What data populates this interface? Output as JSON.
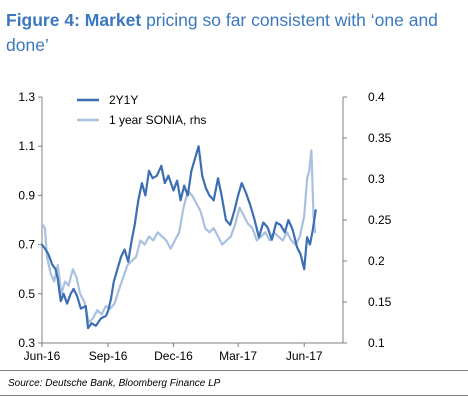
{
  "title": {
    "figure_label": "Figure 4:",
    "strong": "Market",
    "rest": "pricing so far consistent with ‘one and done’"
  },
  "source": "Source: Deutsche Bank, Bloomberg Finance LP",
  "colors": {
    "series_2y1y": "#3c6eb4",
    "series_sonia": "#a8c1e0",
    "title": "#3a78c0"
  },
  "chart_data": {
    "type": "line",
    "xlabel": "",
    "ylabel": "",
    "x_ticks": [
      "Jun-16",
      "Sep-16",
      "Dec-16",
      "Mar-17",
      "Jun-17"
    ],
    "x_tick_dates": [
      "2016-06-01",
      "2016-09-01",
      "2016-12-01",
      "2017-03-01",
      "2017-06-01"
    ],
    "x_range": [
      "2016-06-01",
      "2017-07-25"
    ],
    "y_left": {
      "min": 0.3,
      "max": 1.3,
      "ticks": [
        0.3,
        0.5,
        0.7,
        0.9,
        1.1,
        1.3
      ]
    },
    "y_right": {
      "min": 0.1,
      "max": 0.4,
      "ticks": [
        0.1,
        0.15,
        0.2,
        0.25,
        0.3,
        0.35,
        0.4
      ]
    },
    "legend_position": "top-left",
    "grid": false,
    "series": [
      {
        "name": "2Y1Y",
        "axis": "left",
        "points": [
          [
            "2016-06-01",
            0.7
          ],
          [
            "2016-06-06",
            0.68
          ],
          [
            "2016-06-10",
            0.66
          ],
          [
            "2016-06-15",
            0.62
          ],
          [
            "2016-06-20",
            0.6
          ],
          [
            "2016-06-23",
            0.56
          ],
          [
            "2016-06-27",
            0.47
          ],
          [
            "2016-07-01",
            0.5
          ],
          [
            "2016-07-06",
            0.46
          ],
          [
            "2016-07-11",
            0.5
          ],
          [
            "2016-07-15",
            0.52
          ],
          [
            "2016-07-20",
            0.49
          ],
          [
            "2016-07-25",
            0.44
          ],
          [
            "2016-08-01",
            0.45
          ],
          [
            "2016-08-04",
            0.36
          ],
          [
            "2016-08-09",
            0.38
          ],
          [
            "2016-08-15",
            0.37
          ],
          [
            "2016-08-22",
            0.4
          ],
          [
            "2016-08-29",
            0.41
          ],
          [
            "2016-09-01",
            0.43
          ],
          [
            "2016-09-05",
            0.48
          ],
          [
            "2016-09-09",
            0.55
          ],
          [
            "2016-09-14",
            0.6
          ],
          [
            "2016-09-19",
            0.65
          ],
          [
            "2016-09-24",
            0.68
          ],
          [
            "2016-09-29",
            0.63
          ],
          [
            "2016-10-04",
            0.72
          ],
          [
            "2016-10-08",
            0.78
          ],
          [
            "2016-10-13",
            0.88
          ],
          [
            "2016-10-18",
            0.95
          ],
          [
            "2016-10-23",
            0.9
          ],
          [
            "2016-10-28",
            1.0
          ],
          [
            "2016-11-02",
            0.97
          ],
          [
            "2016-11-08",
            0.98
          ],
          [
            "2016-11-14",
            1.02
          ],
          [
            "2016-11-19",
            0.95
          ],
          [
            "2016-11-24",
            0.98
          ],
          [
            "2016-12-01",
            0.92
          ],
          [
            "2016-12-06",
            0.96
          ],
          [
            "2016-12-11",
            0.88
          ],
          [
            "2016-12-16",
            0.94
          ],
          [
            "2016-12-21",
            0.9
          ],
          [
            "2016-12-26",
            1.0
          ],
          [
            "2016-12-31",
            1.05
          ],
          [
            "2017-01-05",
            1.1
          ],
          [
            "2017-01-10",
            0.98
          ],
          [
            "2017-01-15",
            0.93
          ],
          [
            "2017-01-20",
            0.9
          ],
          [
            "2017-01-26",
            0.88
          ],
          [
            "2017-02-01",
            0.97
          ],
          [
            "2017-02-06",
            0.9
          ],
          [
            "2017-02-12",
            0.8
          ],
          [
            "2017-02-18",
            0.78
          ],
          [
            "2017-02-24",
            0.84
          ],
          [
            "2017-03-01",
            0.9
          ],
          [
            "2017-03-06",
            0.95
          ],
          [
            "2017-03-12",
            0.91
          ],
          [
            "2017-03-18",
            0.86
          ],
          [
            "2017-03-24",
            0.8
          ],
          [
            "2017-03-30",
            0.73
          ],
          [
            "2017-04-05",
            0.79
          ],
          [
            "2017-04-11",
            0.77
          ],
          [
            "2017-04-17",
            0.72
          ],
          [
            "2017-04-23",
            0.79
          ],
          [
            "2017-04-29",
            0.78
          ],
          [
            "2017-05-05",
            0.75
          ],
          [
            "2017-05-10",
            0.8
          ],
          [
            "2017-05-16",
            0.76
          ],
          [
            "2017-05-22",
            0.69
          ],
          [
            "2017-05-27",
            0.66
          ],
          [
            "2017-06-01",
            0.6
          ],
          [
            "2017-06-05",
            0.73
          ],
          [
            "2017-06-09",
            0.7
          ],
          [
            "2017-06-13",
            0.76
          ],
          [
            "2017-06-17",
            0.84
          ]
        ]
      },
      {
        "name": "1 year SONIA, rhs",
        "axis": "right",
        "points": [
          [
            "2016-06-01",
            0.245
          ],
          [
            "2016-06-05",
            0.24
          ],
          [
            "2016-06-08",
            0.205
          ],
          [
            "2016-06-13",
            0.185
          ],
          [
            "2016-06-18",
            0.175
          ],
          [
            "2016-06-23",
            0.195
          ],
          [
            "2016-06-28",
            0.16
          ],
          [
            "2016-07-03",
            0.175
          ],
          [
            "2016-07-08",
            0.17
          ],
          [
            "2016-07-14",
            0.19
          ],
          [
            "2016-07-19",
            0.18
          ],
          [
            "2016-07-24",
            0.16
          ],
          [
            "2016-07-30",
            0.15
          ],
          [
            "2016-08-05",
            0.125
          ],
          [
            "2016-08-11",
            0.13
          ],
          [
            "2016-08-17",
            0.14
          ],
          [
            "2016-08-23",
            0.135
          ],
          [
            "2016-08-29",
            0.145
          ],
          [
            "2016-09-04",
            0.142
          ],
          [
            "2016-09-10",
            0.148
          ],
          [
            "2016-09-16",
            0.165
          ],
          [
            "2016-09-22",
            0.18
          ],
          [
            "2016-09-28",
            0.195
          ],
          [
            "2016-10-04",
            0.2
          ],
          [
            "2016-10-10",
            0.205
          ],
          [
            "2016-10-16",
            0.225
          ],
          [
            "2016-10-22",
            0.22
          ],
          [
            "2016-10-28",
            0.23
          ],
          [
            "2016-11-03",
            0.225
          ],
          [
            "2016-11-09",
            0.235
          ],
          [
            "2016-11-15",
            0.23
          ],
          [
            "2016-11-21",
            0.225
          ],
          [
            "2016-11-27",
            0.215
          ],
          [
            "2016-12-03",
            0.225
          ],
          [
            "2016-12-09",
            0.235
          ],
          [
            "2016-12-15",
            0.265
          ],
          [
            "2016-12-21",
            0.285
          ],
          [
            "2016-12-27",
            0.28
          ],
          [
            "2017-01-02",
            0.27
          ],
          [
            "2017-01-08",
            0.26
          ],
          [
            "2017-01-14",
            0.24
          ],
          [
            "2017-01-20",
            0.235
          ],
          [
            "2017-01-26",
            0.24
          ],
          [
            "2017-02-01",
            0.23
          ],
          [
            "2017-02-07",
            0.22
          ],
          [
            "2017-02-13",
            0.225
          ],
          [
            "2017-02-19",
            0.23
          ],
          [
            "2017-02-25",
            0.245
          ],
          [
            "2017-03-03",
            0.265
          ],
          [
            "2017-03-09",
            0.255
          ],
          [
            "2017-03-15",
            0.245
          ],
          [
            "2017-03-21",
            0.24
          ],
          [
            "2017-03-27",
            0.225
          ],
          [
            "2017-04-02",
            0.23
          ],
          [
            "2017-04-08",
            0.235
          ],
          [
            "2017-04-14",
            0.225
          ],
          [
            "2017-04-20",
            0.235
          ],
          [
            "2017-04-26",
            0.23
          ],
          [
            "2017-05-02",
            0.225
          ],
          [
            "2017-05-08",
            0.235
          ],
          [
            "2017-05-14",
            0.225
          ],
          [
            "2017-05-20",
            0.22
          ],
          [
            "2017-05-26",
            0.23
          ],
          [
            "2017-06-01",
            0.255
          ],
          [
            "2017-06-05",
            0.3
          ],
          [
            "2017-06-08",
            0.31
          ],
          [
            "2017-06-11",
            0.335
          ],
          [
            "2017-06-14",
            0.255
          ],
          [
            "2017-06-16",
            0.235
          ]
        ]
      }
    ]
  }
}
